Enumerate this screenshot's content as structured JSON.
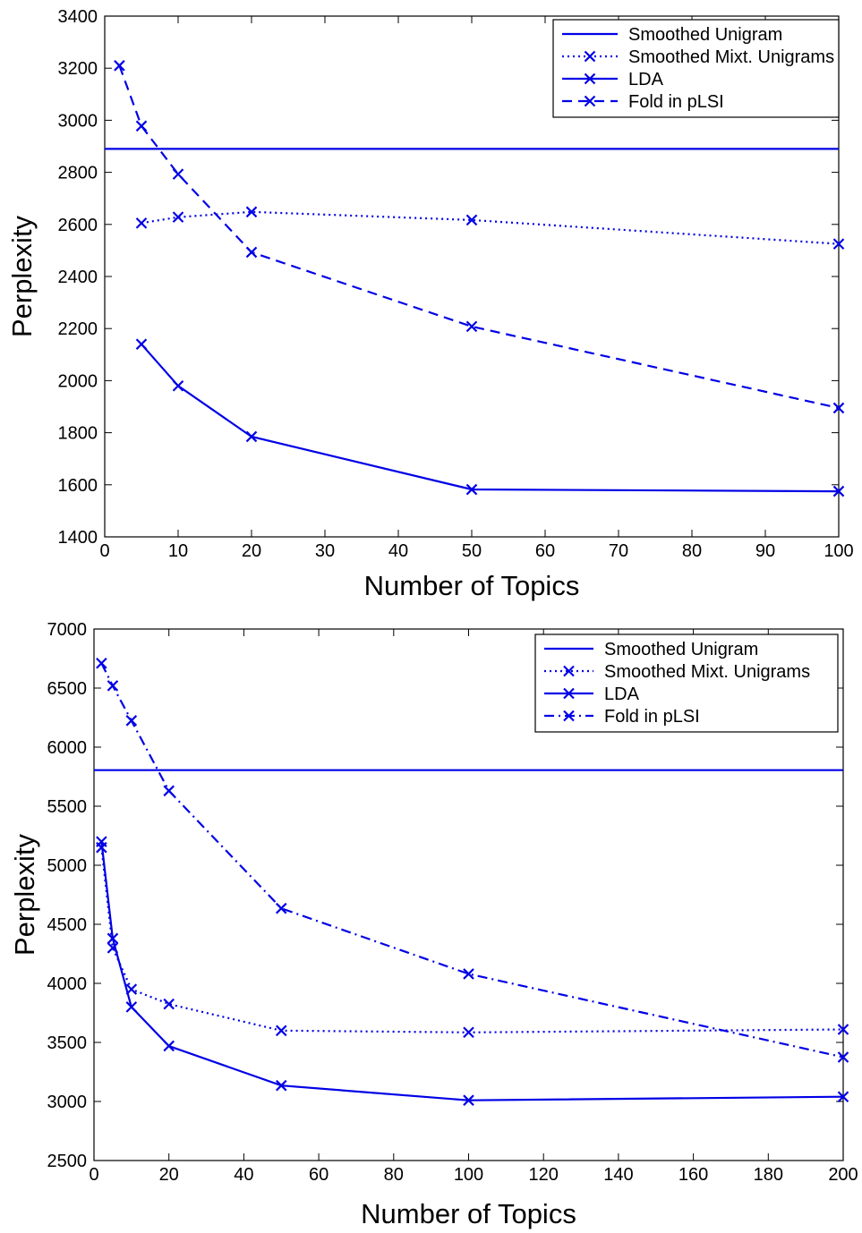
{
  "chart_data": [
    {
      "type": "line",
      "xlabel": "Number of Topics",
      "ylabel": "Perplexity",
      "xlim": [
        0,
        100
      ],
      "ylim": [
        1400,
        3400
      ],
      "xticks": [
        0,
        10,
        20,
        30,
        40,
        50,
        60,
        70,
        80,
        90,
        100
      ],
      "yticks": [
        1400,
        1600,
        1800,
        2000,
        2200,
        2400,
        2600,
        2800,
        3000,
        3200,
        3400
      ],
      "grid": false,
      "legend_position": "top-right",
      "color": "#0000e6",
      "series": [
        {
          "name": "Smoothed Unigram",
          "style": "solid",
          "marker": false,
          "x": [
            0,
            100
          ],
          "y": [
            2890,
            2890
          ]
        },
        {
          "name": "Smoothed Mixt. Unigrams",
          "style": "dotted",
          "marker": true,
          "x": [
            5,
            10,
            20,
            50,
            100
          ],
          "y": [
            2605,
            2628,
            2648,
            2617,
            2525
          ]
        },
        {
          "name": "LDA",
          "style": "solid",
          "marker": true,
          "x": [
            5,
            10,
            20,
            50,
            100
          ],
          "y": [
            2140,
            1980,
            1785,
            1582,
            1575
          ]
        },
        {
          "name": "Fold in pLSI",
          "style": "dashed",
          "marker": true,
          "x": [
            2,
            5,
            10,
            20,
            50,
            100
          ],
          "y": [
            3210,
            2978,
            2793,
            2493,
            2208,
            1895
          ]
        }
      ]
    },
    {
      "type": "line",
      "xlabel": "Number of Topics",
      "ylabel": "Perplexity",
      "xlim": [
        0,
        200
      ],
      "ylim": [
        2500,
        7000
      ],
      "xticks": [
        0,
        20,
        40,
        60,
        80,
        100,
        120,
        140,
        160,
        180,
        200
      ],
      "yticks": [
        2500,
        3000,
        3500,
        4000,
        4500,
        5000,
        5500,
        6000,
        6500,
        7000
      ],
      "grid": false,
      "legend_position": "top-right",
      "color": "#0000e6",
      "series": [
        {
          "name": "Smoothed Unigram",
          "style": "solid",
          "marker": false,
          "x": [
            0,
            200
          ],
          "y": [
            5805,
            5805
          ]
        },
        {
          "name": "Smoothed Mixt. Unigrams",
          "style": "dotted",
          "marker": true,
          "x": [
            2,
            5,
            10,
            20,
            50,
            100,
            200
          ],
          "y": [
            5150,
            4300,
            3950,
            3825,
            3600,
            3585,
            3610
          ]
        },
        {
          "name": "LDA",
          "style": "solid",
          "marker": true,
          "x": [
            2,
            5,
            10,
            20,
            50,
            100,
            200
          ],
          "y": [
            5200,
            4380,
            3800,
            3470,
            3135,
            3010,
            3040
          ]
        },
        {
          "name": "Fold in pLSI",
          "style": "dashdot",
          "marker": true,
          "x": [
            2,
            5,
            10,
            20,
            50,
            100,
            200
          ],
          "y": [
            6710,
            6520,
            6225,
            5630,
            4635,
            4080,
            3375
          ]
        }
      ]
    }
  ]
}
